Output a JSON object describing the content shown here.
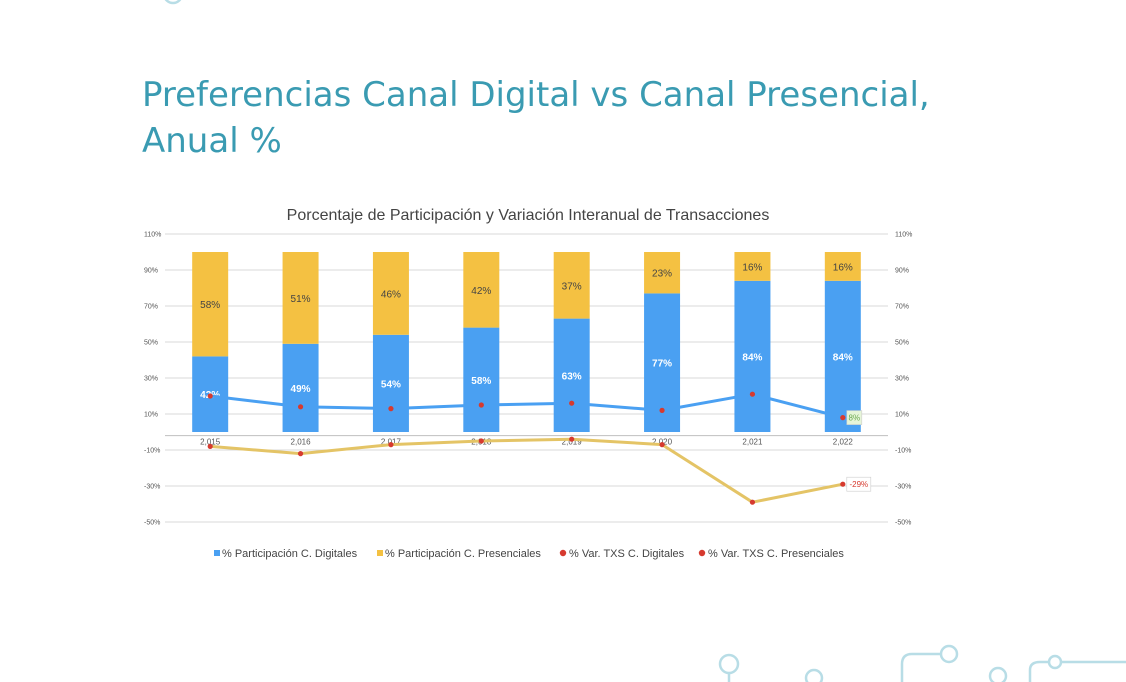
{
  "slide": {
    "title_line1": "Preferencias Canal Digital vs Canal Presencial,",
    "title_line2": "Anual %"
  },
  "colors": {
    "title": "#3a9bb2",
    "digital_bar": "#4aa0f2",
    "presencial_bar": "#f4c142",
    "var_digital_line": "#4aa0f2",
    "var_presencial_line": "#e4c466",
    "markers": "#d63a2f",
    "decoration": "#b8dde6"
  },
  "chart_data": {
    "type": "bar",
    "title": "Porcentaje de Participación y Variación Interanual de Transacciones",
    "categories": [
      "2,015",
      "2,016",
      "2,017",
      "2,018",
      "2,019",
      "2,020",
      "2,021",
      "2,022"
    ],
    "stacked": true,
    "ylim": [
      -50,
      110
    ],
    "yticks": [
      110,
      90,
      70,
      50,
      30,
      10,
      -10,
      -30,
      -50
    ],
    "ytick_labels": [
      "110%",
      "90%",
      "70%",
      "50%",
      "30%",
      "10%",
      "-10%",
      "-30%",
      "-50%"
    ],
    "grid": true,
    "legend_position": "bottom",
    "series": [
      {
        "name": "% Participación C. Digitales",
        "kind": "bar",
        "values": [
          42,
          49,
          54,
          58,
          63,
          77,
          84,
          84
        ],
        "labels": [
          "42%",
          "49%",
          "54%",
          "58%",
          "63%",
          "77%",
          "84%",
          "84%"
        ]
      },
      {
        "name": "% Participación C. Presenciales",
        "kind": "bar",
        "values": [
          58,
          51,
          46,
          42,
          37,
          23,
          16,
          16
        ],
        "labels": [
          "58%",
          "51%",
          "46%",
          "42%",
          "37%",
          "23%",
          "16%",
          "16%"
        ]
      },
      {
        "name": "% Var. TXS C. Digitales",
        "kind": "line",
        "values": [
          20,
          14,
          13,
          15,
          16,
          12,
          21,
          8
        ],
        "last_label": "8%"
      },
      {
        "name": "% Var. TXS C. Presenciales",
        "kind": "line",
        "values": [
          -8,
          -12,
          -7,
          -5,
          -4,
          -7,
          -39,
          -29
        ],
        "last_label": "-29%"
      }
    ]
  }
}
